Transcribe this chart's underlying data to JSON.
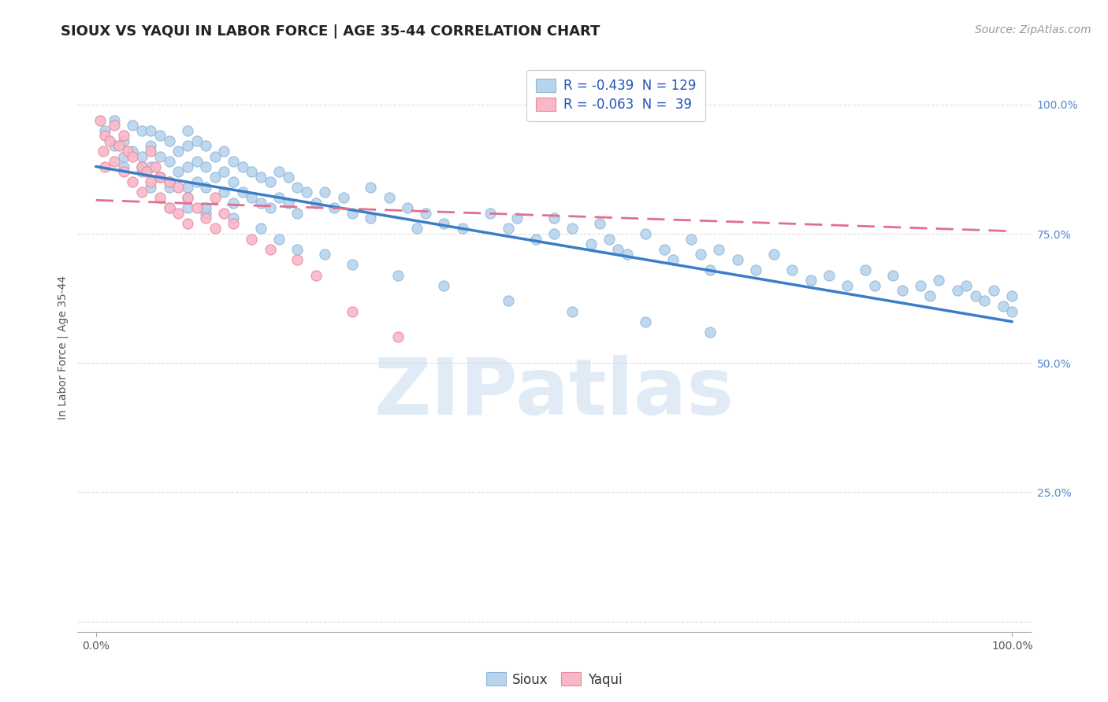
{
  "title": "SIOUX VS YAQUI IN LABOR FORCE | AGE 35-44 CORRELATION CHART",
  "source_text": "Source: ZipAtlas.com",
  "ylabel": "In Labor Force | Age 35-44",
  "xlim": [
    -0.02,
    1.02
  ],
  "ylim": [
    -0.02,
    1.08
  ],
  "background_color": "#ffffff",
  "grid_color": "#dddddd",
  "watermark_text": "ZIPatlas",
  "sioux_color": "#b8d4ec",
  "sioux_edge": "#90b8dc",
  "yaqui_color": "#f9b8c8",
  "yaqui_edge": "#e88aa0",
  "sioux_line_color": "#3a7dc9",
  "yaqui_line_color": "#e07090",
  "sioux_line_x0": 0.0,
  "sioux_line_x1": 1.0,
  "sioux_line_y0": 0.88,
  "sioux_line_y1": 0.58,
  "yaqui_line_x0": 0.0,
  "yaqui_line_x1": 1.0,
  "yaqui_line_y0": 0.815,
  "yaqui_line_y1": 0.755,
  "ytick_positions": [
    0.0,
    0.25,
    0.5,
    0.75,
    1.0
  ],
  "ytick_labels": [
    "",
    "25.0%",
    "50.0%",
    "75.0%",
    "100.0%"
  ],
  "xtick_positions": [
    0.0,
    1.0
  ],
  "xtick_labels": [
    "0.0%",
    "100.0%"
  ],
  "legend_label_sioux": "R = -0.439  N = 129",
  "legend_label_yaqui": "R = -0.063  N =  39",
  "bottom_label_sioux": "Sioux",
  "bottom_label_yaqui": "Yaqui",
  "title_fontsize": 13,
  "axis_label_fontsize": 10,
  "tick_fontsize": 10,
  "legend_fontsize": 12,
  "source_fontsize": 10,
  "marker_size": 90,
  "sioux_points_x": [
    0.01,
    0.02,
    0.02,
    0.03,
    0.03,
    0.03,
    0.04,
    0.04,
    0.05,
    0.05,
    0.05,
    0.06,
    0.06,
    0.06,
    0.06,
    0.07,
    0.07,
    0.07,
    0.08,
    0.08,
    0.08,
    0.08,
    0.09,
    0.09,
    0.1,
    0.1,
    0.1,
    0.1,
    0.1,
    0.11,
    0.11,
    0.11,
    0.12,
    0.12,
    0.12,
    0.12,
    0.13,
    0.13,
    0.14,
    0.14,
    0.14,
    0.15,
    0.15,
    0.15,
    0.16,
    0.16,
    0.17,
    0.17,
    0.18,
    0.18,
    0.19,
    0.19,
    0.2,
    0.2,
    0.21,
    0.21,
    0.22,
    0.22,
    0.23,
    0.24,
    0.25,
    0.26,
    0.27,
    0.28,
    0.3,
    0.3,
    0.32,
    0.34,
    0.35,
    0.36,
    0.38,
    0.4,
    0.43,
    0.45,
    0.46,
    0.48,
    0.5,
    0.5,
    0.52,
    0.54,
    0.55,
    0.56,
    0.57,
    0.58,
    0.6,
    0.62,
    0.63,
    0.65,
    0.66,
    0.67,
    0.68,
    0.7,
    0.72,
    0.74,
    0.76,
    0.78,
    0.8,
    0.82,
    0.84,
    0.85,
    0.87,
    0.88,
    0.9,
    0.91,
    0.92,
    0.94,
    0.95,
    0.96,
    0.97,
    0.98,
    0.99,
    1.0,
    1.0,
    0.05,
    0.07,
    0.08,
    0.1,
    0.12,
    0.15,
    0.18,
    0.2,
    0.22,
    0.25,
    0.28,
    0.33,
    0.38,
    0.45,
    0.52,
    0.6,
    0.67
  ],
  "sioux_points_y": [
    0.95,
    0.92,
    0.97,
    0.93,
    0.9,
    0.88,
    0.96,
    0.91,
    0.95,
    0.9,
    0.87,
    0.95,
    0.92,
    0.88,
    0.84,
    0.94,
    0.9,
    0.86,
    0.93,
    0.89,
    0.85,
    0.8,
    0.91,
    0.87,
    0.95,
    0.92,
    0.88,
    0.84,
    0.8,
    0.93,
    0.89,
    0.85,
    0.92,
    0.88,
    0.84,
    0.79,
    0.9,
    0.86,
    0.91,
    0.87,
    0.83,
    0.89,
    0.85,
    0.81,
    0.88,
    0.83,
    0.87,
    0.82,
    0.86,
    0.81,
    0.85,
    0.8,
    0.87,
    0.82,
    0.86,
    0.81,
    0.84,
    0.79,
    0.83,
    0.81,
    0.83,
    0.8,
    0.82,
    0.79,
    0.84,
    0.78,
    0.82,
    0.8,
    0.76,
    0.79,
    0.77,
    0.76,
    0.79,
    0.76,
    0.78,
    0.74,
    0.78,
    0.75,
    0.76,
    0.73,
    0.77,
    0.74,
    0.72,
    0.71,
    0.75,
    0.72,
    0.7,
    0.74,
    0.71,
    0.68,
    0.72,
    0.7,
    0.68,
    0.71,
    0.68,
    0.66,
    0.67,
    0.65,
    0.68,
    0.65,
    0.67,
    0.64,
    0.65,
    0.63,
    0.66,
    0.64,
    0.65,
    0.63,
    0.62,
    0.64,
    0.61,
    0.63,
    0.6,
    0.88,
    0.86,
    0.84,
    0.82,
    0.8,
    0.78,
    0.76,
    0.74,
    0.72,
    0.71,
    0.69,
    0.67,
    0.65,
    0.62,
    0.6,
    0.58,
    0.56
  ],
  "yaqui_points_x": [
    0.005,
    0.008,
    0.01,
    0.01,
    0.015,
    0.02,
    0.02,
    0.025,
    0.03,
    0.03,
    0.035,
    0.04,
    0.04,
    0.05,
    0.05,
    0.055,
    0.06,
    0.06,
    0.065,
    0.07,
    0.07,
    0.08,
    0.08,
    0.09,
    0.09,
    0.1,
    0.1,
    0.11,
    0.12,
    0.13,
    0.13,
    0.14,
    0.15,
    0.17,
    0.19,
    0.22,
    0.24,
    0.28,
    0.33
  ],
  "yaqui_points_y": [
    0.97,
    0.91,
    0.94,
    0.88,
    0.93,
    0.96,
    0.89,
    0.92,
    0.94,
    0.87,
    0.91,
    0.9,
    0.85,
    0.88,
    0.83,
    0.87,
    0.91,
    0.85,
    0.88,
    0.86,
    0.82,
    0.85,
    0.8,
    0.84,
    0.79,
    0.82,
    0.77,
    0.8,
    0.78,
    0.82,
    0.76,
    0.79,
    0.77,
    0.74,
    0.72,
    0.7,
    0.67,
    0.6,
    0.55
  ]
}
